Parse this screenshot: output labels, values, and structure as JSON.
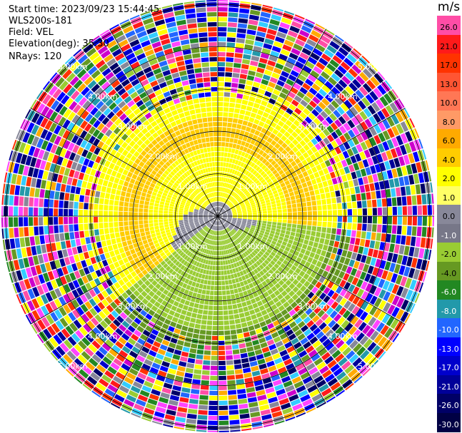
{
  "info": {
    "start_time": "Start time: 2023/09/23 15:44:45",
    "instrument": "WLS200s-181",
    "field": "Field: VEL",
    "elevation": "Elevation(deg): 35.30",
    "nrays": "NRays: 120"
  },
  "colorbar": {
    "title": "m/s",
    "levels": [
      {
        "label": "26.0",
        "color": "#ff4da6",
        "text": "#000000"
      },
      {
        "label": "21.0",
        "color": "#ff1a1a",
        "text": "#000000"
      },
      {
        "label": "17.0",
        "color": "#ff3300",
        "text": "#000000"
      },
      {
        "label": "13.0",
        "color": "#ff5533",
        "text": "#000000"
      },
      {
        "label": "10.0",
        "color": "#ff7755",
        "text": "#000000"
      },
      {
        "label": "8.0",
        "color": "#ff9a66",
        "text": "#000000"
      },
      {
        "label": "6.0",
        "color": "#ffaa00",
        "text": "#000000"
      },
      {
        "label": "4.0",
        "color": "#ffcc00",
        "text": "#000000"
      },
      {
        "label": "2.0",
        "color": "#ffff00",
        "text": "#000000"
      },
      {
        "label": "1.0",
        "color": "#ffff66",
        "text": "#000000"
      },
      {
        "label": "0.0",
        "color": "#888899",
        "text": "#000000"
      },
      {
        "label": "-1.0",
        "color": "#777788",
        "text": "#ffffff"
      },
      {
        "label": "-2.0",
        "color": "#99cc33",
        "text": "#000000"
      },
      {
        "label": "-4.0",
        "color": "#669922",
        "text": "#000000"
      },
      {
        "label": "-6.0",
        "color": "#228822",
        "text": "#ffffff"
      },
      {
        "label": "-8.0",
        "color": "#2299aa",
        "text": "#ffffff"
      },
      {
        "label": "-10.0",
        "color": "#2266ff",
        "text": "#ffffff"
      },
      {
        "label": "-13.0",
        "color": "#0000ff",
        "text": "#ffffff"
      },
      {
        "label": "-17.0",
        "color": "#0000cc",
        "text": "#ffffff"
      },
      {
        "label": "-21.0",
        "color": "#000099",
        "text": "#ffffff"
      },
      {
        "label": "-26.0",
        "color": "#000066",
        "text": "#ffffff"
      },
      {
        "label": "-30.0",
        "color": "#000044",
        "text": "#ffffff"
      }
    ]
  },
  "range_rings": [
    {
      "label": "1.00km",
      "range_km": 1
    },
    {
      "label": "2.00km",
      "range_km": 2
    },
    {
      "label": "3.00km",
      "range_km": 3
    },
    {
      "label": "4.00km",
      "range_km": 4
    },
    {
      "label": "5.00km",
      "range_km": 5
    }
  ],
  "ppi": {
    "max_range_km": 5.1,
    "n_rays": 120,
    "yellow": "#ffff00",
    "orange": "#ffcc00",
    "gray": "#888899",
    "green": "#99cc33",
    "olive": "#669922",
    "noise_colors": [
      "#ff4da6",
      "#ff1a1a",
      "#ff3300",
      "#ffaa00",
      "#ffff00",
      "#888899",
      "#99cc33",
      "#669922",
      "#228822",
      "#2299aa",
      "#2266ff",
      "#0000ff",
      "#0000cc",
      "#000099",
      "#000066",
      "#ff44ff",
      "#cc00cc",
      "#33ccff"
    ]
  }
}
